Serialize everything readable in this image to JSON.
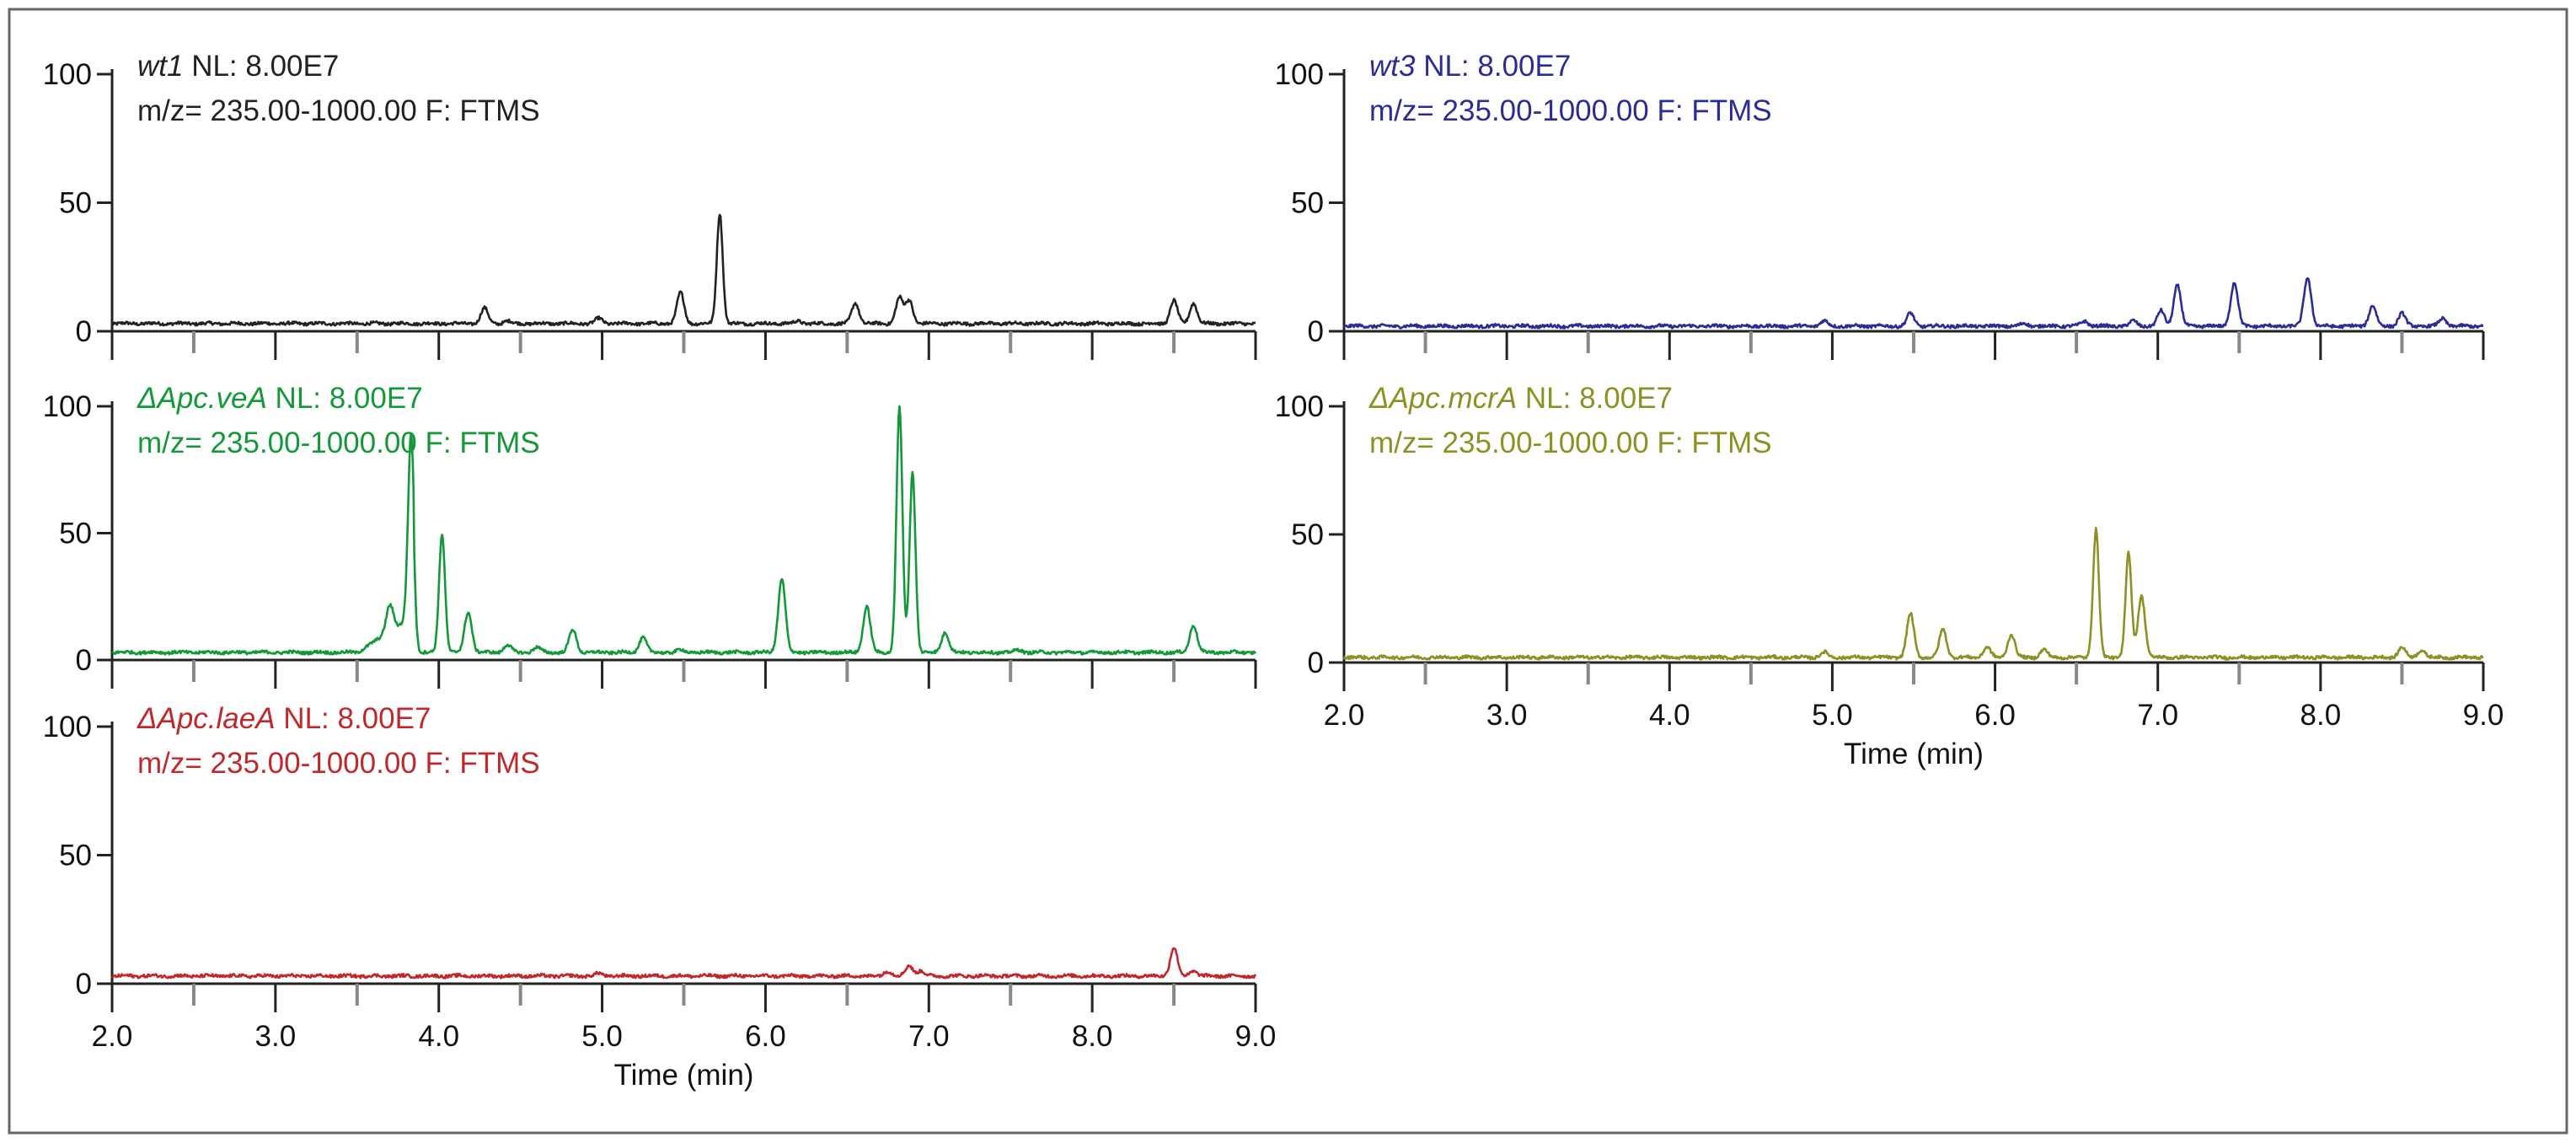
{
  "chart_data": [
    {
      "type": "line",
      "sample": "wt1",
      "nl": " NL: 8.00E7",
      "scan": "m/z= 235.00-1000.00 F: FTMS",
      "color": "#222222",
      "xlim": [
        2.0,
        9.0
      ],
      "ylim": [
        0,
        100
      ],
      "yticks": [
        "0",
        "50",
        "100"
      ],
      "xticks": [],
      "xlabel": "",
      "baseline": 3,
      "peaks": [
        [
          4.28,
          9
        ],
        [
          4.42,
          4
        ],
        [
          4.98,
          5
        ],
        [
          5.48,
          15
        ],
        [
          5.72,
          46
        ],
        [
          6.1,
          3
        ],
        [
          6.2,
          4
        ],
        [
          6.55,
          11
        ],
        [
          6.82,
          13
        ],
        [
          6.88,
          12
        ],
        [
          8.5,
          12
        ],
        [
          8.62,
          11
        ]
      ]
    },
    {
      "type": "line",
      "sample": "wt3",
      "nl": " NL: 8.00E7",
      "scan": "m/z= 235.00-1000.00 F: FTMS",
      "color": "#2b2c96",
      "xlim": [
        2.0,
        9.0
      ],
      "ylim": [
        0,
        100
      ],
      "yticks": [
        "0",
        "50",
        "100"
      ],
      "xticks": [],
      "xlabel": "",
      "baseline": 2,
      "peaks": [
        [
          4.95,
          4
        ],
        [
          5.48,
          7
        ],
        [
          6.18,
          3
        ],
        [
          6.55,
          4
        ],
        [
          6.85,
          4
        ],
        [
          7.02,
          8
        ],
        [
          7.12,
          18
        ],
        [
          7.47,
          19
        ],
        [
          7.92,
          21
        ],
        [
          8.32,
          10
        ],
        [
          8.5,
          7
        ],
        [
          8.75,
          5
        ]
      ]
    },
    {
      "type": "line",
      "sample": "ΔApc.veA",
      "nl": " NL: 8.00E7",
      "scan": "m/z= 235.00-1000.00 F: FTMS",
      "color": "#13983a",
      "xlim": [
        2.0,
        9.0
      ],
      "ylim": [
        0,
        100
      ],
      "yticks": [
        "0",
        "50",
        "100"
      ],
      "xticks": [],
      "xlabel": "",
      "baseline": 3,
      "peaks": [
        [
          3.7,
          14
        ],
        [
          3.83,
          76
        ],
        [
          4.02,
          50
        ],
        [
          4.18,
          19
        ],
        [
          4.42,
          6
        ],
        [
          4.6,
          5
        ],
        [
          4.82,
          12
        ],
        [
          5.25,
          9
        ],
        [
          5.48,
          4
        ],
        [
          6.1,
          32
        ],
        [
          6.62,
          21
        ],
        [
          6.82,
          100
        ],
        [
          6.9,
          74
        ],
        [
          7.1,
          11
        ],
        [
          7.55,
          4
        ],
        [
          8.62,
          14
        ]
      ]
    },
    {
      "type": "line",
      "sample": "ΔApc.mcrA",
      "nl": " NL: 8.00E7",
      "scan": "m/z= 235.00-1000.00 F: FTMS",
      "color": "#8d9022",
      "xlim": [
        2.0,
        9.0
      ],
      "ylim": [
        0,
        100
      ],
      "yticks": [
        "0",
        "50",
        "100"
      ],
      "xticks": [
        "2.0",
        "3.0",
        "4.0",
        "5.0",
        "6.0",
        "7.0",
        "8.0",
        "9.0"
      ],
      "xlabel": "Time (min)",
      "baseline": 2,
      "peaks": [
        [
          4.95,
          4
        ],
        [
          5.48,
          19
        ],
        [
          5.68,
          13
        ],
        [
          5.95,
          6
        ],
        [
          6.1,
          11
        ],
        [
          6.3,
          5
        ],
        [
          6.62,
          52
        ],
        [
          6.82,
          43
        ],
        [
          6.9,
          26
        ],
        [
          8.5,
          6
        ],
        [
          8.62,
          5
        ]
      ]
    },
    {
      "type": "line",
      "sample": "ΔApc.laeA",
      "nl": " NL: 8.00E7",
      "scan": "m/z= 235.00-1000.00 F: FTMS",
      "color": "#c0282d",
      "xlim": [
        2.0,
        9.0
      ],
      "ylim": [
        0,
        100
      ],
      "yticks": [
        "0",
        "50",
        "100"
      ],
      "xticks": [
        "2.0",
        "3.0",
        "4.0",
        "5.0",
        "6.0",
        "7.0",
        "8.0",
        "9.0"
      ],
      "xlabel": "Time (min)",
      "baseline": 3,
      "peaks": [
        [
          4.98,
          4
        ],
        [
          6.75,
          5
        ],
        [
          6.88,
          7
        ],
        [
          6.95,
          5
        ],
        [
          8.5,
          14
        ],
        [
          8.62,
          5
        ]
      ]
    }
  ]
}
